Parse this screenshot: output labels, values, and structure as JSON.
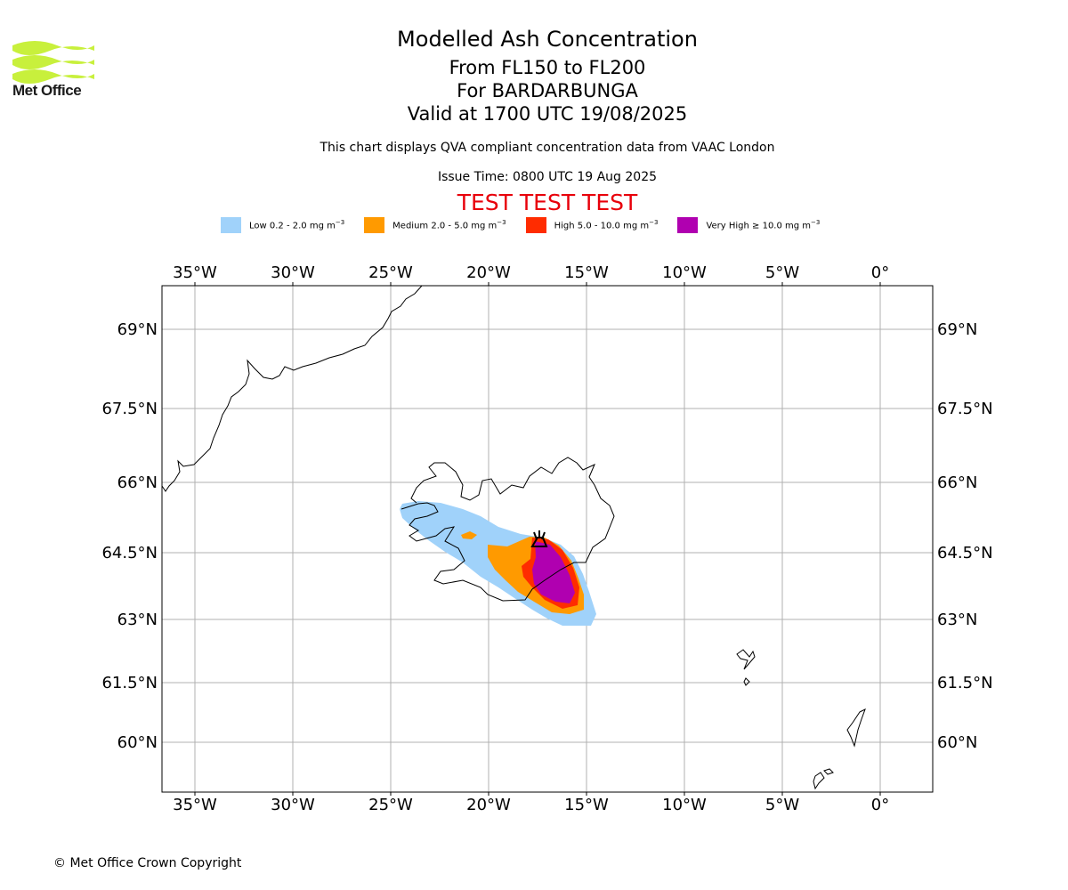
{
  "header": {
    "logo_text": "Met Office",
    "title": "Modelled Ash Concentration",
    "level_range": "From FL150 to FL200",
    "volcano": "For BARDARBUNGA",
    "valid_time": "Valid at 1700 UTC 19/08/2025",
    "subtitle": "This chart displays QVA compliant concentration data from VAAC London",
    "issue_time": "Issue Time: 0800 UTC 19 Aug 2025",
    "test_banner": "TEST TEST TEST"
  },
  "legend": [
    {
      "label": "Low 0.2 - 2.0 mg m",
      "unit_exp": "−3",
      "color": "#a0d2fa"
    },
    {
      "label": "Medium 2.0 - 5.0 mg m",
      "unit_exp": "−3",
      "color": "#ff9a00"
    },
    {
      "label": "High 5.0 - 10.0 mg m",
      "unit_exp": "−3",
      "color": "#ff2c00"
    },
    {
      "label": "Very High ≥ 10.0 mg m",
      "unit_exp": "−3",
      "color": "#b000b0"
    }
  ],
  "map": {
    "lon_labels": [
      "35°W",
      "30°W",
      "25°W",
      "20°W",
      "15°W",
      "10°W",
      "5°W",
      "0°"
    ],
    "lat_labels": [
      "69°N",
      "67.5°N",
      "66°N",
      "64.5°N",
      "63°N",
      "61.5°N",
      "60°N"
    ],
    "volcano_marker": "BARDARBUNGA"
  },
  "footer": {
    "copyright": "© Met Office Crown Copyright"
  }
}
